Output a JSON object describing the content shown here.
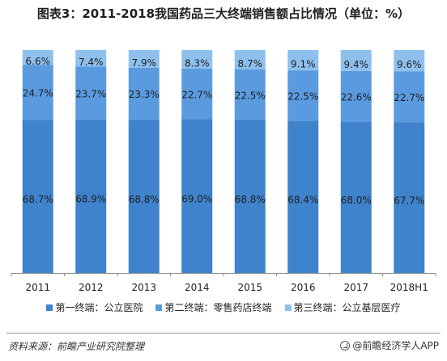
{
  "title": "图表3：2011-2018我国药品三大终端销售额占比情况（单位：%）",
  "source": "资料来源：前瞻产业研究院整理",
  "brand": "@前瞻经济学人APP",
  "colors": {
    "series1": "#3f83cc",
    "series2": "#5a9be0",
    "series3": "#8ec0ee",
    "label": "#1f1f1f",
    "axis": "#8c8c8c"
  },
  "chart_data": {
    "type": "bar",
    "stacked": true,
    "categories": [
      "2011",
      "2012",
      "2013",
      "2014",
      "2015",
      "2016",
      "2017",
      "2018H1"
    ],
    "series": [
      {
        "name": "第一终端：公立医院",
        "values": [
          68.7,
          68.9,
          68.8,
          69.0,
          68.8,
          68.4,
          68.0,
          67.7
        ],
        "labels": [
          "68.7%",
          "68.9%",
          "68.8%",
          "69.0%",
          "68.8%",
          "68.4%",
          "68.0%",
          "67.7%"
        ]
      },
      {
        "name": "第二终端：零售药店终端",
        "values": [
          24.7,
          23.7,
          23.3,
          22.7,
          22.5,
          22.5,
          22.6,
          22.7
        ],
        "labels": [
          "24.7%",
          "23.7%",
          "23.3%",
          "22.7%",
          "22.5%",
          "22.5%",
          "22.6%",
          "22.7%"
        ]
      },
      {
        "name": "第三终端：公立基层医疗",
        "values": [
          6.6,
          7.4,
          7.9,
          8.3,
          8.7,
          9.1,
          9.4,
          9.6
        ],
        "labels": [
          "6.6%",
          "7.4%",
          "7.9%",
          "8.3%",
          "8.7%",
          "9.1%",
          "9.4%",
          "9.6%"
        ]
      }
    ],
    "ylim": [
      0,
      100
    ],
    "grid": false,
    "legend_position": "bottom"
  }
}
